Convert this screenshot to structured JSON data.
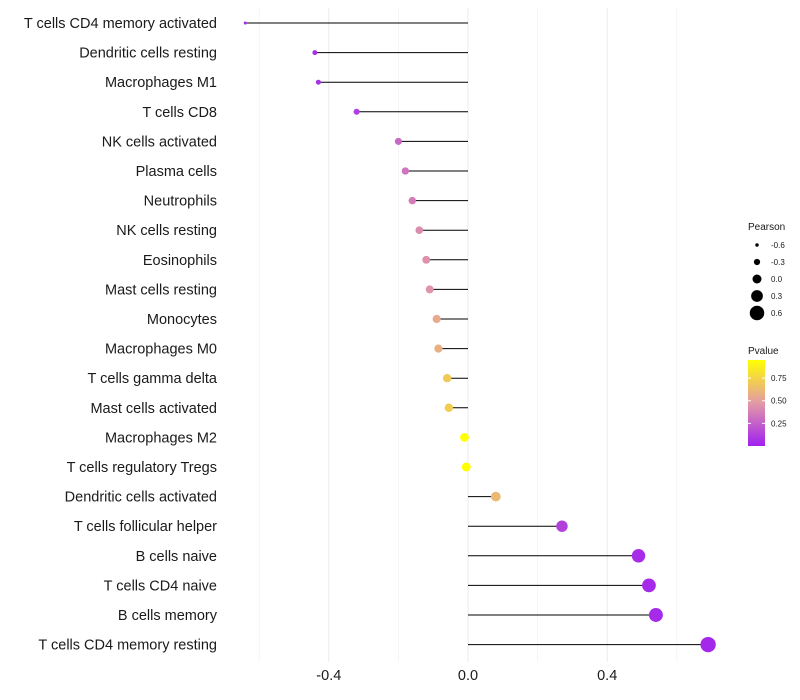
{
  "chart_data": {
    "type": "lollipop",
    "title": "",
    "xlabel": "",
    "ylabel": "",
    "xlim": [
      -0.6,
      0.8
    ],
    "grid": true,
    "x_ticks": [
      -0.4,
      0.0,
      0.4
    ],
    "x_tick_labels": [
      "-0.4",
      "0.0",
      "0.4"
    ],
    "categories": [
      "T cells CD4 memory activated",
      "Dendritic cells resting",
      "Macrophages M1",
      "T cells CD8",
      "NK cells activated",
      "Plasma cells",
      "Neutrophils",
      "NK cells resting",
      "Eosinophils",
      "Mast cells resting",
      "Monocytes",
      "Macrophages M0",
      "T cells gamma delta",
      "Mast cells activated",
      "Macrophages M2",
      "T cells regulatory  Tregs ",
      "Dendritic cells activated",
      "T cells follicular helper",
      "B cells naive",
      "T cells CD4 naive",
      "B cells memory",
      "T cells CD4 memory resting"
    ],
    "values": [
      -0.64,
      -0.44,
      -0.43,
      -0.32,
      -0.2,
      -0.18,
      -0.16,
      -0.14,
      -0.12,
      -0.11,
      -0.09,
      -0.085,
      -0.06,
      -0.055,
      -0.01,
      -0.005,
      0.08,
      0.27,
      0.49,
      0.52,
      0.54,
      0.69
    ],
    "pvalues": [
      0.05,
      0.06,
      0.07,
      0.12,
      0.28,
      0.33,
      0.36,
      0.42,
      0.44,
      0.45,
      0.55,
      0.58,
      0.7,
      0.72,
      0.98,
      0.99,
      0.62,
      0.13,
      0.05,
      0.04,
      0.04,
      0.03
    ],
    "legend_pearson": {
      "title": "Pearson",
      "values": [
        -0.6,
        -0.3,
        0.0,
        0.3,
        0.6
      ],
      "labels": [
        "-0.6",
        "-0.3",
        "0.0",
        "0.3",
        "0.6"
      ]
    },
    "legend_pvalue": {
      "title": "Pvalue",
      "ticks": [
        0.75,
        0.5,
        0.25
      ],
      "labels": [
        "0.75",
        "0.50",
        "0.25"
      ],
      "range": [
        0.0,
        0.95
      ],
      "low_color": "#a020f0",
      "mid_color": "#e39aa6",
      "high_color": "#ffff00"
    },
    "legend_position": "right"
  }
}
